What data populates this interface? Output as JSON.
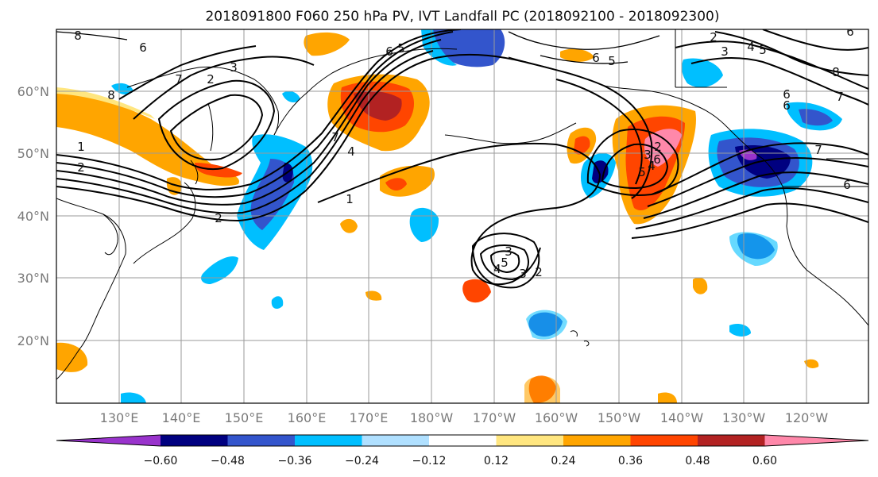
{
  "title": "2018091800 F060 250 hPa PV, IVT Landfall PC (2018092100 - 2018092300)",
  "map": {
    "lat_labels": [
      "60°N",
      "50°N",
      "40°N",
      "30°N",
      "20°N"
    ],
    "lon_labels": [
      "130°E",
      "140°E",
      "150°E",
      "160°E",
      "170°E",
      "180°W",
      "170°W",
      "160°W",
      "150°W",
      "140°W",
      "130°W",
      "120°W"
    ],
    "contour_labels": [
      "8",
      "6",
      "3",
      "2",
      "7",
      "8",
      "1",
      "2",
      "6",
      "5",
      "7",
      "4",
      "1",
      "2",
      "6",
      "5",
      "3",
      "4",
      "3",
      "2",
      "2",
      "3",
      "4",
      "5",
      "6",
      "2",
      "3",
      "4",
      "5",
      "6",
      "8",
      "7",
      "6",
      "7",
      "5",
      "6",
      "6"
    ]
  },
  "colorbar": {
    "tick_labels": [
      "−0.60",
      "−0.48",
      "−0.36",
      "−0.24",
      "−0.12",
      "0.12",
      "0.24",
      "0.36",
      "0.48",
      "0.60"
    ],
    "bins": [
      {
        "color": "#9933cc"
      },
      {
        "color": "#000080"
      },
      {
        "color": "#3355cc"
      },
      {
        "color": "#00bfff"
      },
      {
        "color": "#b0e0ff"
      },
      {
        "color": "#ffffff"
      },
      {
        "color": "#ffe680"
      },
      {
        "color": "#ffa500"
      },
      {
        "color": "#ff4500"
      },
      {
        "color": "#b22222"
      },
      {
        "color": "#ff88aa"
      }
    ]
  }
}
